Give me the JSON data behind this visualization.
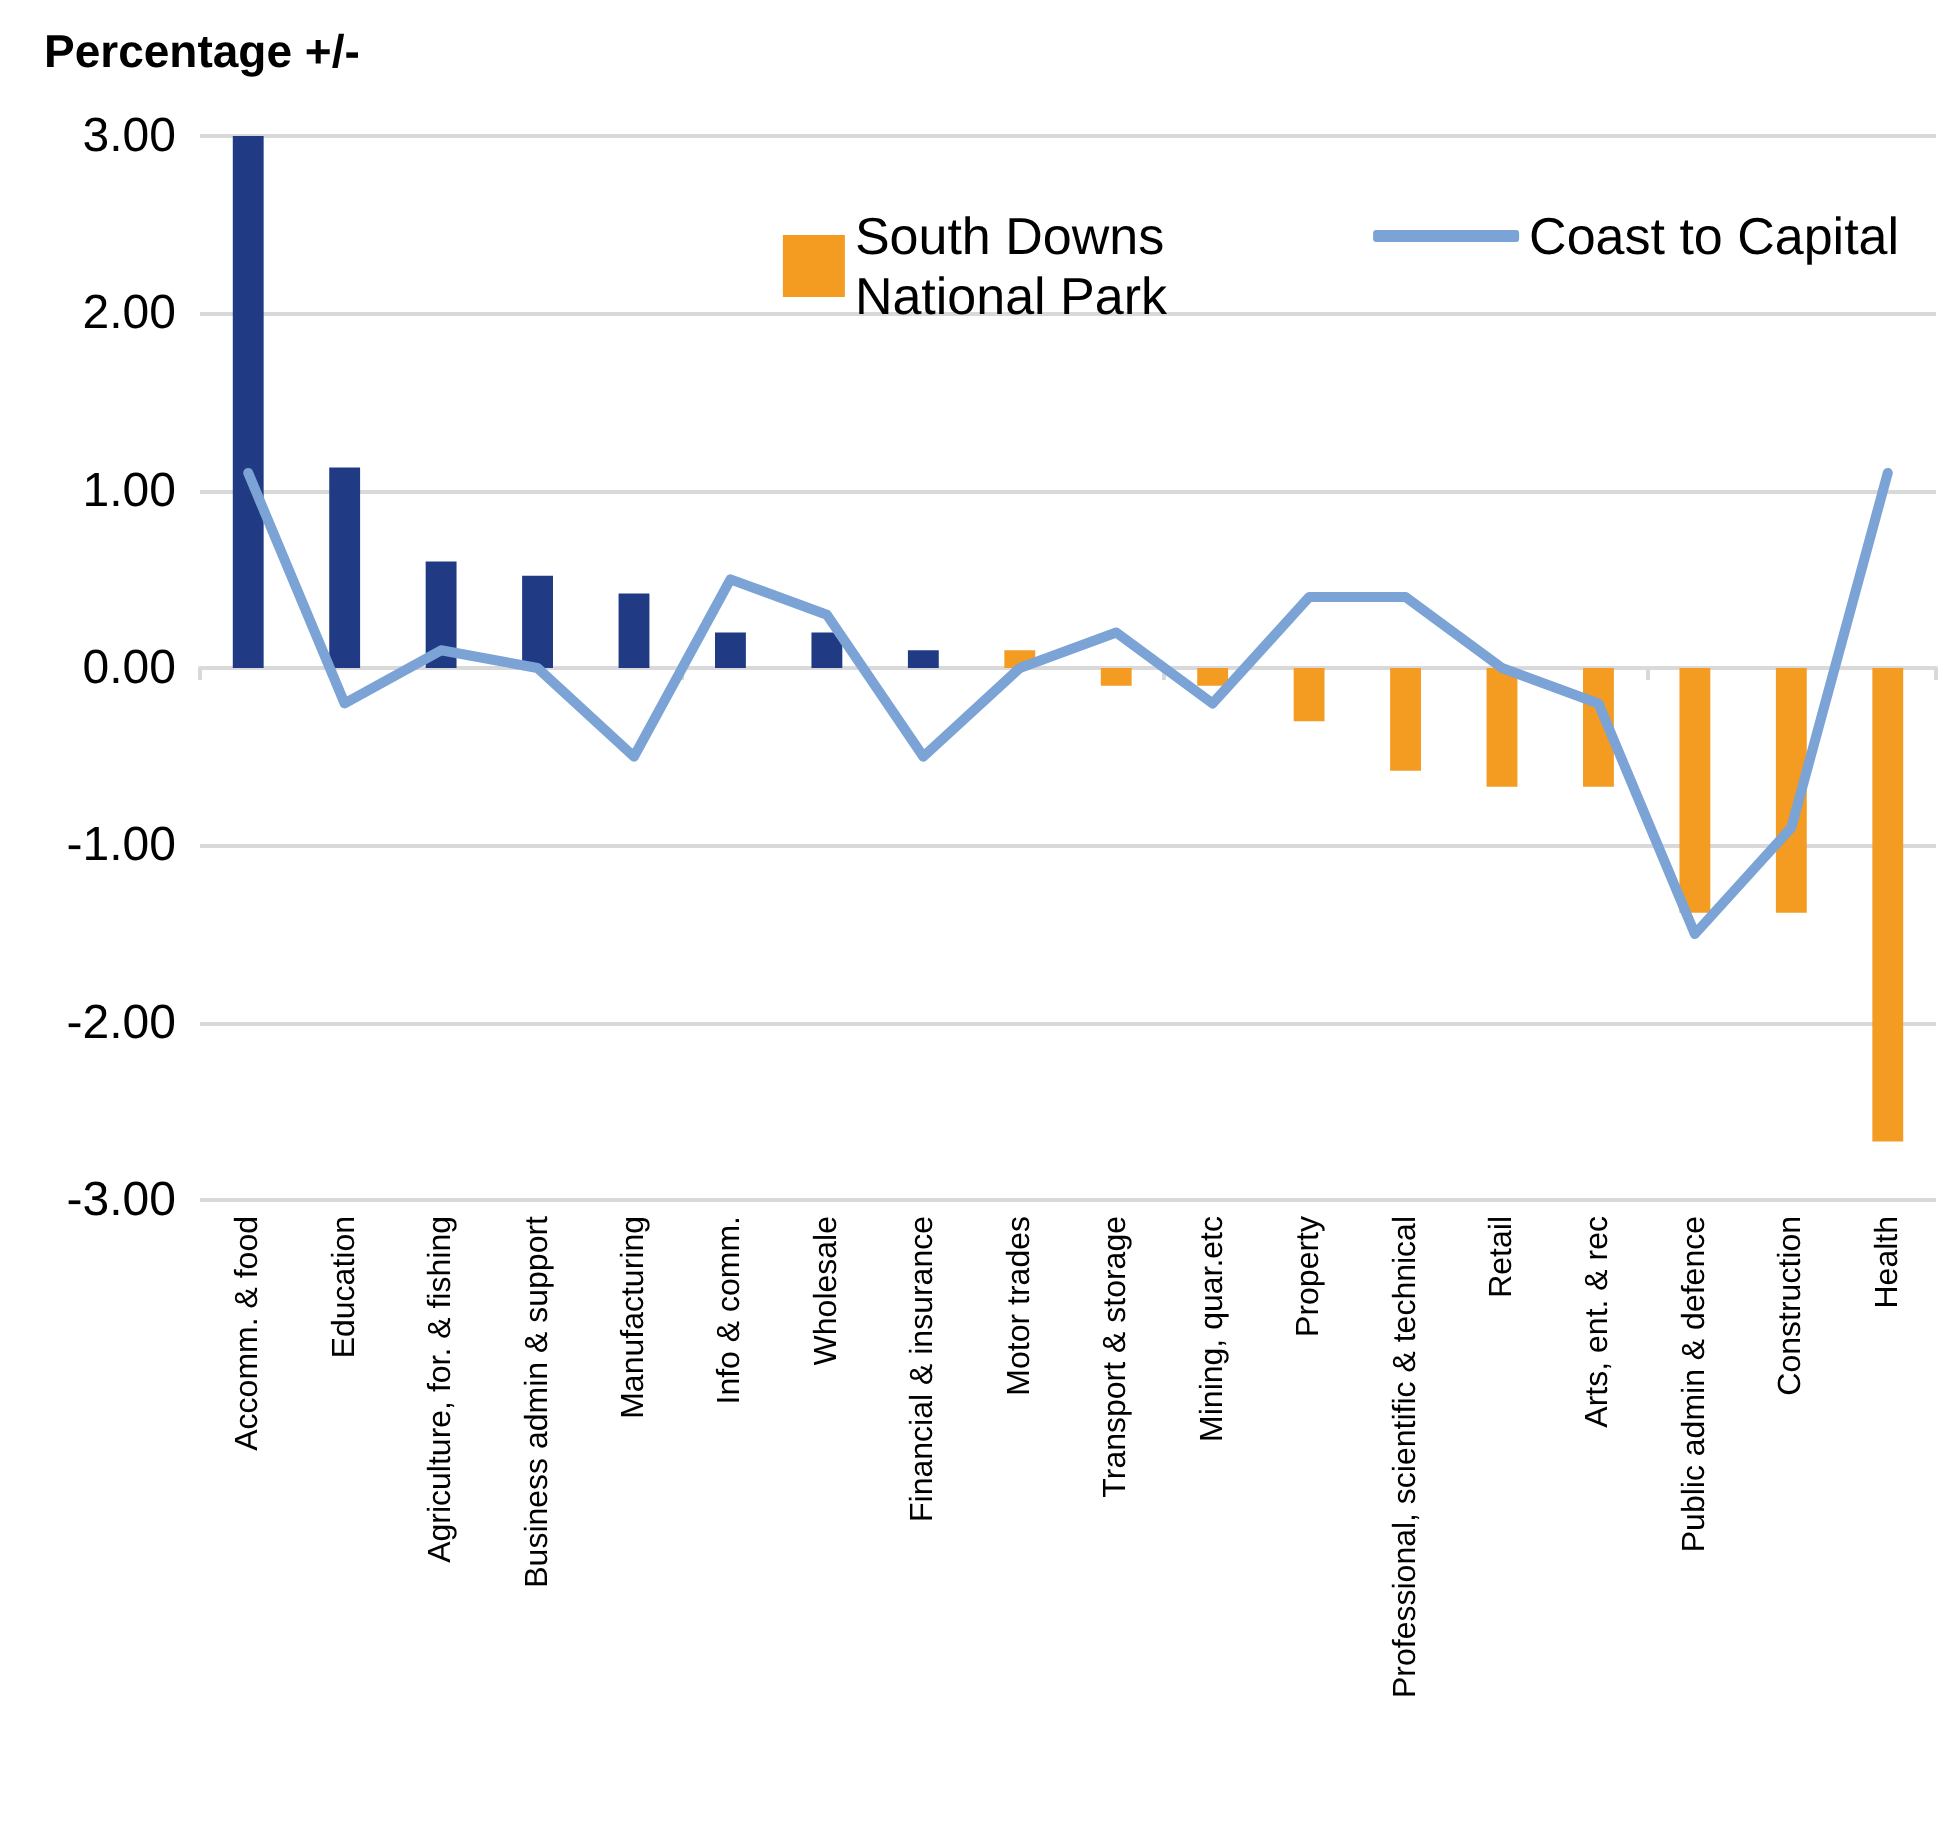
{
  "chart_data": {
    "type": "bar",
    "ylabel": "Percentage +/-",
    "categories": [
      "Accomm. & food",
      "Education",
      "Agriculture, for. & fishing",
      "Business admin & support",
      "Manufacturing",
      "Info & comm.",
      "Wholesale",
      "Financial & insurance",
      "Motor trades",
      "Transport & storage",
      "Mining, quar.etc",
      "Property",
      "Professional, scientific & technical",
      "Retail",
      "Arts, ent. & rec",
      "Public admin & defence",
      "Construction",
      "Health"
    ],
    "series": [
      {
        "name": "South Downs National Park",
        "color": "#f49c22",
        "colors": [
          "#203a84",
          "#203a84",
          "#203a84",
          "#203a84",
          "#203a84",
          "#203a84",
          "#203a84",
          "#203a84",
          "#f49c22",
          "#f49c22",
          "#f49c22",
          "#f49c22",
          "#f49c22",
          "#f49c22",
          "#f49c22",
          "#f49c22",
          "#f49c22",
          "#f49c22"
        ],
        "values": [
          3.0,
          1.13,
          0.6,
          0.52,
          0.42,
          0.2,
          0.2,
          0.1,
          0.1,
          -0.1,
          -0.1,
          -0.3,
          -0.58,
          -0.67,
          -0.67,
          -1.38,
          -1.38,
          -2.67
        ]
      },
      {
        "name": "Coast to Capital",
        "type": "line",
        "color": "#7ba3d6",
        "values": [
          1.1,
          -0.2,
          0.1,
          0,
          -0.5,
          0.5,
          0.3,
          -0.5,
          0,
          0.2,
          -0.2,
          0.4,
          0.4,
          0,
          -0.2,
          -1.5,
          -0.9,
          1.1
        ]
      }
    ],
    "ylim": [
      -3,
      3
    ],
    "yticks": [
      {
        "value": -3,
        "label": "-3.00"
      },
      {
        "value": -2,
        "label": "-2.00"
      },
      {
        "value": -1,
        "label": "-1.00"
      },
      {
        "value": 0,
        "label": "0.00"
      },
      {
        "value": 1,
        "label": "1.00"
      },
      {
        "value": 2,
        "label": "2.00"
      },
      {
        "value": 3,
        "label": "3.00"
      }
    ],
    "grid": "y",
    "legend": "top right",
    "marker": "none",
    "line_style": "solid"
  }
}
